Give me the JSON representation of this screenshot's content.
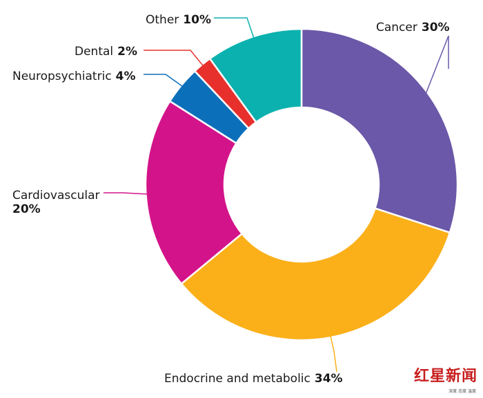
{
  "chart_data": {
    "type": "pie",
    "variant": "donut",
    "title": "",
    "slices": [
      {
        "name": "Cancer",
        "value": 30,
        "label": "30%",
        "color": "#6b58a8"
      },
      {
        "name": "Endocrine and metabolic",
        "value": 34,
        "label": "34%",
        "color": "#fbb01a"
      },
      {
        "name": "Cardiovascular",
        "value": 20,
        "label": "20%",
        "color": "#d3138a"
      },
      {
        "name": "Neuropsychiatric",
        "value": 4,
        "label": "4%",
        "color": "#0c6fba"
      },
      {
        "name": "Dental",
        "value": 2,
        "label": "2%",
        "color": "#e7302c"
      },
      {
        "name": "Other",
        "value": 10,
        "label": "10%",
        "color": "#0bb1ae"
      }
    ],
    "legend": "none"
  },
  "watermark": {
    "brand": "红星新闻",
    "sub": "深度 态度 温度"
  }
}
